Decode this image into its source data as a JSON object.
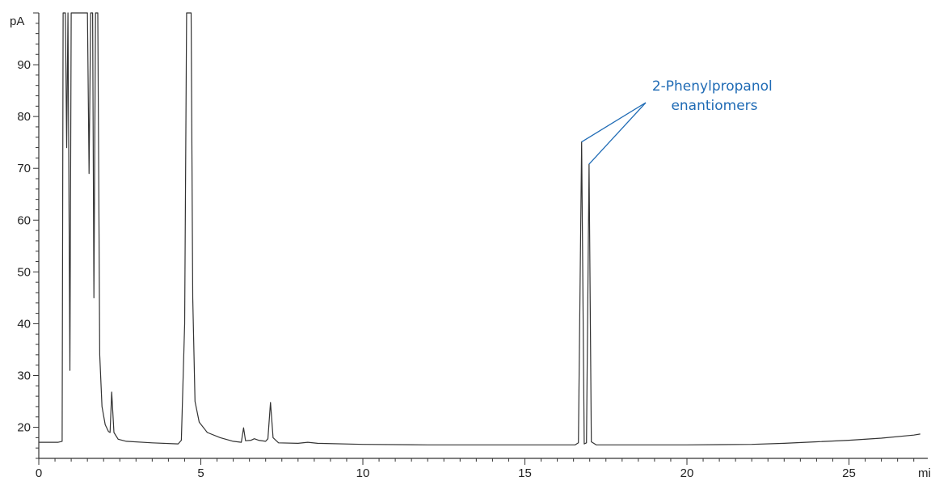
{
  "chart_data": {
    "type": "line",
    "title": "",
    "xlabel": "min",
    "ylabel": "pA",
    "xlim": [
      0,
      27.5
    ],
    "ylim": [
      14,
      100
    ],
    "grid": false,
    "x_ticks": [
      0,
      5,
      10,
      15,
      20,
      25
    ],
    "y_ticks": [
      20,
      30,
      40,
      50,
      60,
      70,
      80,
      90
    ],
    "trace_color": "#333333",
    "annotation_color": "#1f6bb5",
    "annotations": [
      {
        "lines": [
          "2-Phenylpropanol",
          "enantiomers"
        ],
        "points_to": [
          {
            "x": 16.75,
            "y": 75.1
          },
          {
            "x": 16.98,
            "y": 70.8
          }
        ]
      }
    ],
    "series": [
      {
        "values": [
          {
            "x": 0.0,
            "y": 17.1
          },
          {
            "x": 0.6,
            "y": 17.1
          },
          {
            "x": 0.72,
            "y": 17.3
          },
          {
            "x": 0.75,
            "y": 100
          },
          {
            "x": 0.82,
            "y": 100
          },
          {
            "x": 0.86,
            "y": 74.0
          },
          {
            "x": 0.9,
            "y": 100
          },
          {
            "x": 0.96,
            "y": 31.0
          },
          {
            "x": 1.0,
            "y": 100
          },
          {
            "x": 1.05,
            "y": 100
          },
          {
            "x": 1.1,
            "y": 100
          },
          {
            "x": 1.5,
            "y": 100
          },
          {
            "x": 1.55,
            "y": 69.0
          },
          {
            "x": 1.6,
            "y": 100
          },
          {
            "x": 1.66,
            "y": 100
          },
          {
            "x": 1.7,
            "y": 45.0
          },
          {
            "x": 1.75,
            "y": 100
          },
          {
            "x": 1.82,
            "y": 100
          },
          {
            "x": 1.88,
            "y": 34.0
          },
          {
            "x": 1.95,
            "y": 24.0
          },
          {
            "x": 2.05,
            "y": 20.5
          },
          {
            "x": 2.15,
            "y": 19.2
          },
          {
            "x": 2.2,
            "y": 19.0
          },
          {
            "x": 2.25,
            "y": 26.8
          },
          {
            "x": 2.32,
            "y": 19.0
          },
          {
            "x": 2.45,
            "y": 17.7
          },
          {
            "x": 2.7,
            "y": 17.3
          },
          {
            "x": 3.5,
            "y": 17.0
          },
          {
            "x": 4.3,
            "y": 16.8
          },
          {
            "x": 4.4,
            "y": 17.5
          },
          {
            "x": 4.5,
            "y": 40.0
          },
          {
            "x": 4.56,
            "y": 100
          },
          {
            "x": 4.7,
            "y": 100
          },
          {
            "x": 4.75,
            "y": 45.0
          },
          {
            "x": 4.82,
            "y": 25.0
          },
          {
            "x": 4.95,
            "y": 21.0
          },
          {
            "x": 5.2,
            "y": 19.0
          },
          {
            "x": 5.6,
            "y": 18.0
          },
          {
            "x": 6.0,
            "y": 17.3
          },
          {
            "x": 6.25,
            "y": 17.1
          },
          {
            "x": 6.32,
            "y": 19.9
          },
          {
            "x": 6.38,
            "y": 17.4
          },
          {
            "x": 6.55,
            "y": 17.5
          },
          {
            "x": 6.65,
            "y": 17.8
          },
          {
            "x": 6.78,
            "y": 17.5
          },
          {
            "x": 7.0,
            "y": 17.3
          },
          {
            "x": 7.07,
            "y": 17.8
          },
          {
            "x": 7.15,
            "y": 24.8
          },
          {
            "x": 7.23,
            "y": 18.0
          },
          {
            "x": 7.4,
            "y": 17.0
          },
          {
            "x": 8.0,
            "y": 16.9
          },
          {
            "x": 8.3,
            "y": 17.1
          },
          {
            "x": 8.6,
            "y": 16.9
          },
          {
            "x": 10.0,
            "y": 16.7
          },
          {
            "x": 12.0,
            "y": 16.6
          },
          {
            "x": 14.0,
            "y": 16.6
          },
          {
            "x": 15.0,
            "y": 16.6
          },
          {
            "x": 16.0,
            "y": 16.6
          },
          {
            "x": 16.55,
            "y": 16.6
          },
          {
            "x": 16.65,
            "y": 17.0
          },
          {
            "x": 16.75,
            "y": 75.1
          },
          {
            "x": 16.83,
            "y": 16.8
          },
          {
            "x": 16.9,
            "y": 17.0
          },
          {
            "x": 16.98,
            "y": 70.8
          },
          {
            "x": 17.05,
            "y": 17.2
          },
          {
            "x": 17.2,
            "y": 16.6
          },
          {
            "x": 18.0,
            "y": 16.6
          },
          {
            "x": 20.0,
            "y": 16.6
          },
          {
            "x": 22.0,
            "y": 16.7
          },
          {
            "x": 23.0,
            "y": 16.9
          },
          {
            "x": 24.0,
            "y": 17.2
          },
          {
            "x": 25.0,
            "y": 17.5
          },
          {
            "x": 26.0,
            "y": 17.9
          },
          {
            "x": 27.0,
            "y": 18.5
          },
          {
            "x": 27.2,
            "y": 18.7
          }
        ]
      }
    ]
  }
}
